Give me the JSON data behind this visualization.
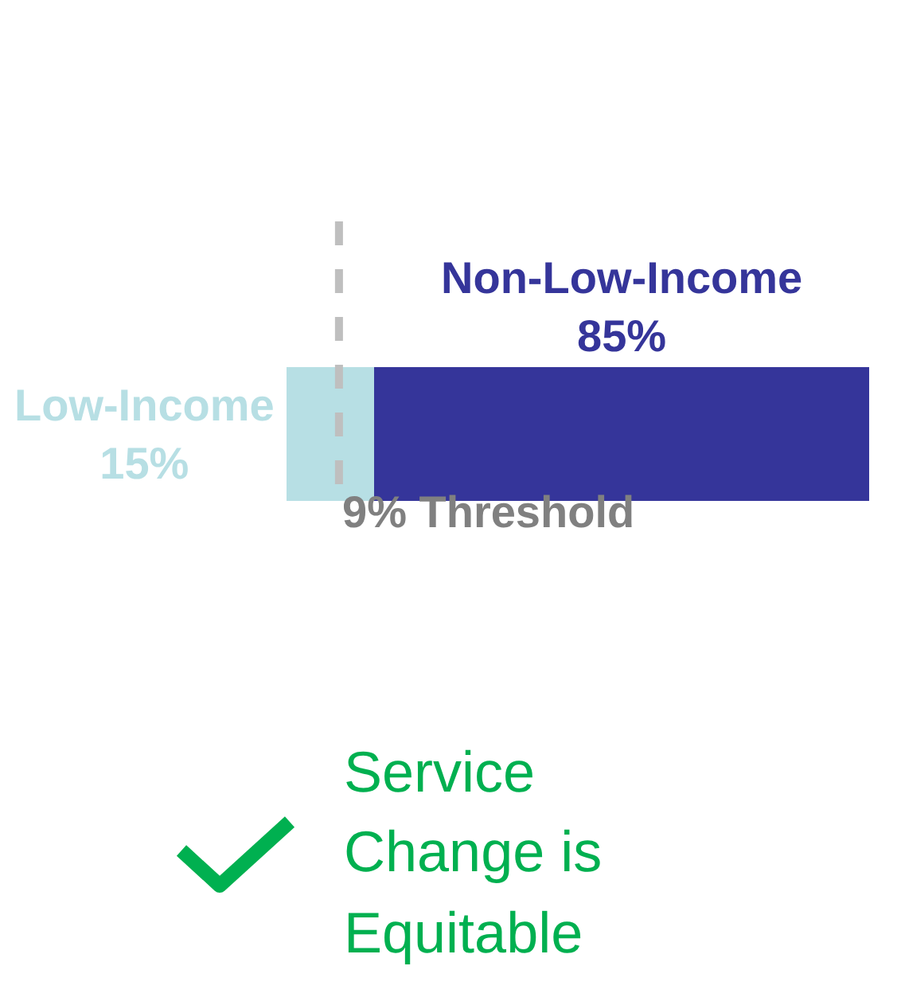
{
  "chart_data": {
    "type": "bar",
    "stacked": true,
    "orientation": "horizontal",
    "categories": [
      null
    ],
    "series": [
      {
        "name": "Low-Income",
        "color": "#b7dfe4",
        "values": [
          15
        ],
        "value_labels": [
          "15%"
        ]
      },
      {
        "name": "Non-Low-Income",
        "color": "#35359a",
        "values": [
          85
        ],
        "value_labels": [
          "85%"
        ]
      }
    ],
    "xlim": [
      0,
      100
    ],
    "legend": false,
    "ref_lines": [
      {
        "axis": "x",
        "value": 9,
        "label": "9% Threshold",
        "color": "#bfbfbf",
        "line_style": "dashed"
      }
    ],
    "annotations": [
      "Service Change is Equitable"
    ]
  }
}
